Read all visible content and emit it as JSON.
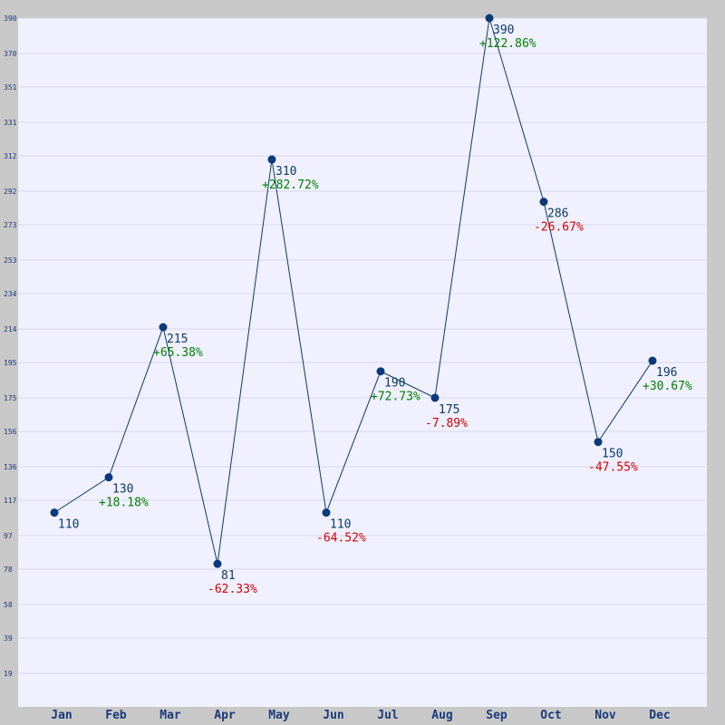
{
  "chart_data": {
    "type": "line",
    "title": "",
    "xlabel": "",
    "ylabel": "",
    "categories": [
      "Jan",
      "Feb",
      "Mar",
      "Apr",
      "May",
      "Jun",
      "Jul",
      "Aug",
      "Sep",
      "Oct",
      "Nov",
      "Dec"
    ],
    "series": [
      {
        "values": [
          110,
          130,
          215,
          81,
          310,
          110,
          190,
          175,
          390,
          286,
          150,
          196
        ],
        "change_labels": [
          "",
          "+18.18%",
          "+65.38%",
          "-62.33%",
          "+282.72%",
          "-64.52%",
          "+72.73%",
          "-7.89%",
          "+122.86%",
          "-26.67%",
          "-47.55%",
          "+30.67%"
        ]
      }
    ],
    "y_ticks": [
      19,
      39,
      58,
      78,
      97,
      117,
      136,
      156,
      175,
      195,
      214,
      234,
      253,
      273,
      292,
      312,
      331,
      351,
      370,
      390
    ],
    "ylim": [
      0,
      390
    ],
    "grid": true,
    "colors": {
      "frame": "#c8c8c8",
      "plot_bg": "#f0f0ff",
      "grid": "#d8d8e8",
      "line": "#0a3a6a",
      "marker": "#0a3a7a",
      "positive": "#008000",
      "negative": "#d40000"
    }
  }
}
